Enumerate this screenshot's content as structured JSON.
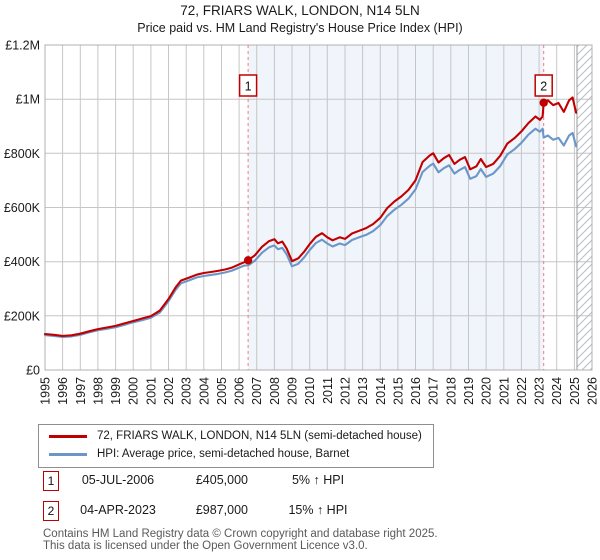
{
  "header": {
    "title": "72, FRIARS WALK, LONDON, N14 5LN",
    "subtitle": "Price paid vs. HM Land Registry's House Price Index (HPI)"
  },
  "colors": {
    "property_line": "#c00000",
    "hpi_line": "#6c96c8",
    "shaded_span_fill": "#f0f4fb",
    "gridline": "#c6c6c6",
    "plot_border": "#b0b0b0",
    "purchase_dashed_line": "#f07c7c",
    "marker_box_border": "#c00000",
    "hatch_stroke": "#b8bcc4",
    "axis_text": "#1a1a1a",
    "footer_text": "#5a5a5a"
  },
  "chart_data": {
    "type": "line",
    "title": "72, FRIARS WALK, LONDON, N14 5LN",
    "subtitle": "Price paid vs. HM Land Registry's House Price Index (HPI)",
    "unit": "GBP thousands",
    "xlim": [
      1995,
      2026
    ],
    "ylim": [
      0,
      1200
    ],
    "grid": true,
    "x_ticks": [
      1995,
      1996,
      1997,
      1998,
      1999,
      2000,
      2001,
      2002,
      2003,
      2004,
      2005,
      2006,
      2007,
      2008,
      2009,
      2010,
      2011,
      2012,
      2013,
      2014,
      2015,
      2016,
      2017,
      2018,
      2019,
      2020,
      2021,
      2022,
      2023,
      2024,
      2025,
      2026
    ],
    "y_ticks": [
      {
        "v": 0,
        "label": "£0"
      },
      {
        "v": 200,
        "label": "£200K"
      },
      {
        "v": 400,
        "label": "£400K"
      },
      {
        "v": 600,
        "label": "£600K"
      },
      {
        "v": 800,
        "label": "£800K"
      },
      {
        "v": 1000,
        "label": "£1M"
      },
      {
        "v": 1200,
        "label": "£1.2M"
      }
    ],
    "series": [
      {
        "name": "72, FRIARS WALK, LONDON, N14 5LN (semi-detached house)",
        "color": "#c00000",
        "points": [
          [
            1995.0,
            133
          ],
          [
            1995.5,
            130
          ],
          [
            1996.0,
            126
          ],
          [
            1996.5,
            128
          ],
          [
            1997.0,
            134
          ],
          [
            1997.5,
            143
          ],
          [
            1998.0,
            151
          ],
          [
            1998.5,
            157
          ],
          [
            1999.0,
            163
          ],
          [
            1999.5,
            172
          ],
          [
            2000.0,
            181
          ],
          [
            2000.5,
            190
          ],
          [
            2001.0,
            199
          ],
          [
            2001.5,
            219
          ],
          [
            2002.0,
            262
          ],
          [
            2002.4,
            305
          ],
          [
            2002.7,
            330
          ],
          [
            2003.2,
            342
          ],
          [
            2003.6,
            352
          ],
          [
            2004.0,
            358
          ],
          [
            2004.4,
            362
          ],
          [
            2004.8,
            366
          ],
          [
            2005.2,
            371
          ],
          [
            2005.6,
            378
          ],
          [
            2006.0,
            390
          ],
          [
            2006.3,
            398
          ],
          [
            2006.51,
            405
          ],
          [
            2006.9,
            424
          ],
          [
            2007.3,
            455
          ],
          [
            2007.7,
            476
          ],
          [
            2008.0,
            483
          ],
          [
            2008.2,
            468
          ],
          [
            2008.45,
            474
          ],
          [
            2008.7,
            448
          ],
          [
            2009.0,
            402
          ],
          [
            2009.35,
            412
          ],
          [
            2009.7,
            438
          ],
          [
            2010.0,
            465
          ],
          [
            2010.35,
            492
          ],
          [
            2010.7,
            505
          ],
          [
            2011.0,
            490
          ],
          [
            2011.3,
            479
          ],
          [
            2011.7,
            490
          ],
          [
            2012.0,
            484
          ],
          [
            2012.4,
            504
          ],
          [
            2012.8,
            514
          ],
          [
            2013.2,
            524
          ],
          [
            2013.6,
            539
          ],
          [
            2014.0,
            562
          ],
          [
            2014.4,
            598
          ],
          [
            2014.8,
            622
          ],
          [
            2015.2,
            641
          ],
          [
            2015.6,
            665
          ],
          [
            2016.0,
            700
          ],
          [
            2016.4,
            768
          ],
          [
            2016.8,
            792
          ],
          [
            2017.0,
            800
          ],
          [
            2017.3,
            766
          ],
          [
            2017.6,
            782
          ],
          [
            2017.9,
            794
          ],
          [
            2018.2,
            761
          ],
          [
            2018.5,
            776
          ],
          [
            2018.8,
            786
          ],
          [
            2019.1,
            741
          ],
          [
            2019.45,
            752
          ],
          [
            2019.7,
            779
          ],
          [
            2020.0,
            749
          ],
          [
            2020.4,
            761
          ],
          [
            2020.8,
            791
          ],
          [
            2021.2,
            836
          ],
          [
            2021.6,
            856
          ],
          [
            2022.0,
            881
          ],
          [
            2022.4,
            912
          ],
          [
            2022.8,
            936
          ],
          [
            2023.05,
            924
          ],
          [
            2023.2,
            936
          ],
          [
            2023.26,
            987
          ],
          [
            2023.5,
            996
          ],
          [
            2023.8,
            978
          ],
          [
            2024.1,
            986
          ],
          [
            2024.4,
            953
          ],
          [
            2024.7,
            996
          ],
          [
            2024.9,
            1006
          ],
          [
            2025.1,
            950
          ]
        ]
      },
      {
        "name": "HPI: Average price, semi-detached house, Barnet",
        "color": "#6c96c8",
        "points": [
          [
            1995.0,
            129
          ],
          [
            1995.5,
            126
          ],
          [
            1996.0,
            122
          ],
          [
            1996.5,
            124
          ],
          [
            1997.0,
            130
          ],
          [
            1997.5,
            139
          ],
          [
            1998.0,
            147
          ],
          [
            1998.5,
            152
          ],
          [
            1999.0,
            158
          ],
          [
            1999.5,
            167
          ],
          [
            2000.0,
            176
          ],
          [
            2000.5,
            184
          ],
          [
            2001.0,
            193
          ],
          [
            2001.5,
            212
          ],
          [
            2002.0,
            254
          ],
          [
            2002.4,
            296
          ],
          [
            2002.7,
            320
          ],
          [
            2003.2,
            332
          ],
          [
            2003.6,
            342
          ],
          [
            2004.0,
            347
          ],
          [
            2004.4,
            351
          ],
          [
            2004.8,
            355
          ],
          [
            2005.2,
            360
          ],
          [
            2005.6,
            367
          ],
          [
            2006.0,
            378
          ],
          [
            2006.3,
            386
          ],
          [
            2006.51,
            386
          ],
          [
            2006.9,
            404
          ],
          [
            2007.3,
            433
          ],
          [
            2007.7,
            453
          ],
          [
            2008.0,
            460
          ],
          [
            2008.2,
            446
          ],
          [
            2008.45,
            451
          ],
          [
            2008.7,
            427
          ],
          [
            2009.0,
            383
          ],
          [
            2009.35,
            392
          ],
          [
            2009.7,
            417
          ],
          [
            2010.0,
            443
          ],
          [
            2010.35,
            469
          ],
          [
            2010.7,
            481
          ],
          [
            2011.0,
            467
          ],
          [
            2011.3,
            456
          ],
          [
            2011.7,
            467
          ],
          [
            2012.0,
            461
          ],
          [
            2012.4,
            480
          ],
          [
            2012.8,
            490
          ],
          [
            2013.2,
            499
          ],
          [
            2013.6,
            513
          ],
          [
            2014.0,
            535
          ],
          [
            2014.4,
            569
          ],
          [
            2014.8,
            592
          ],
          [
            2015.2,
            610
          ],
          [
            2015.6,
            633
          ],
          [
            2016.0,
            667
          ],
          [
            2016.4,
            731
          ],
          [
            2016.8,
            754
          ],
          [
            2017.0,
            762
          ],
          [
            2017.3,
            730
          ],
          [
            2017.6,
            745
          ],
          [
            2017.9,
            756
          ],
          [
            2018.2,
            725
          ],
          [
            2018.5,
            739
          ],
          [
            2018.8,
            749
          ],
          [
            2019.1,
            706
          ],
          [
            2019.45,
            716
          ],
          [
            2019.7,
            742
          ],
          [
            2020.0,
            713
          ],
          [
            2020.4,
            725
          ],
          [
            2020.8,
            753
          ],
          [
            2021.2,
            796
          ],
          [
            2021.6,
            815
          ],
          [
            2022.0,
            839
          ],
          [
            2022.4,
            869
          ],
          [
            2022.8,
            891
          ],
          [
            2023.05,
            880
          ],
          [
            2023.2,
            891
          ],
          [
            2023.26,
            858
          ],
          [
            2023.5,
            866
          ],
          [
            2023.8,
            850
          ],
          [
            2024.1,
            857
          ],
          [
            2024.4,
            829
          ],
          [
            2024.7,
            866
          ],
          [
            2024.9,
            875
          ],
          [
            2025.1,
            826
          ]
        ]
      }
    ],
    "purchases": [
      {
        "num": "1",
        "x": 2006.51,
        "y": 405,
        "date": "05-JUL-2006",
        "price": "£405,000",
        "vs_hpi": "5% ↑ HPI"
      },
      {
        "num": "2",
        "x": 2023.26,
        "y": 987,
        "date": "04-APR-2023",
        "price": "£987,000",
        "vs_hpi": "15% ↑ HPI"
      }
    ],
    "shaded_span": [
      2006.51,
      2023.26
    ],
    "hatch_span": [
      2025.15,
      2026
    ],
    "legend_position": "bottom"
  },
  "legend": {
    "items": [
      {
        "label": "72, FRIARS WALK, LONDON, N14 5LN (semi-detached house)",
        "color": "#c00000"
      },
      {
        "label": "HPI: Average price, semi-detached house, Barnet",
        "color": "#6c96c8"
      }
    ]
  },
  "footer": {
    "line1": "Contains HM Land Registry data © Crown copyright and database right 2025.",
    "line2": "This data is licensed under the Open Government Licence v3.0."
  }
}
